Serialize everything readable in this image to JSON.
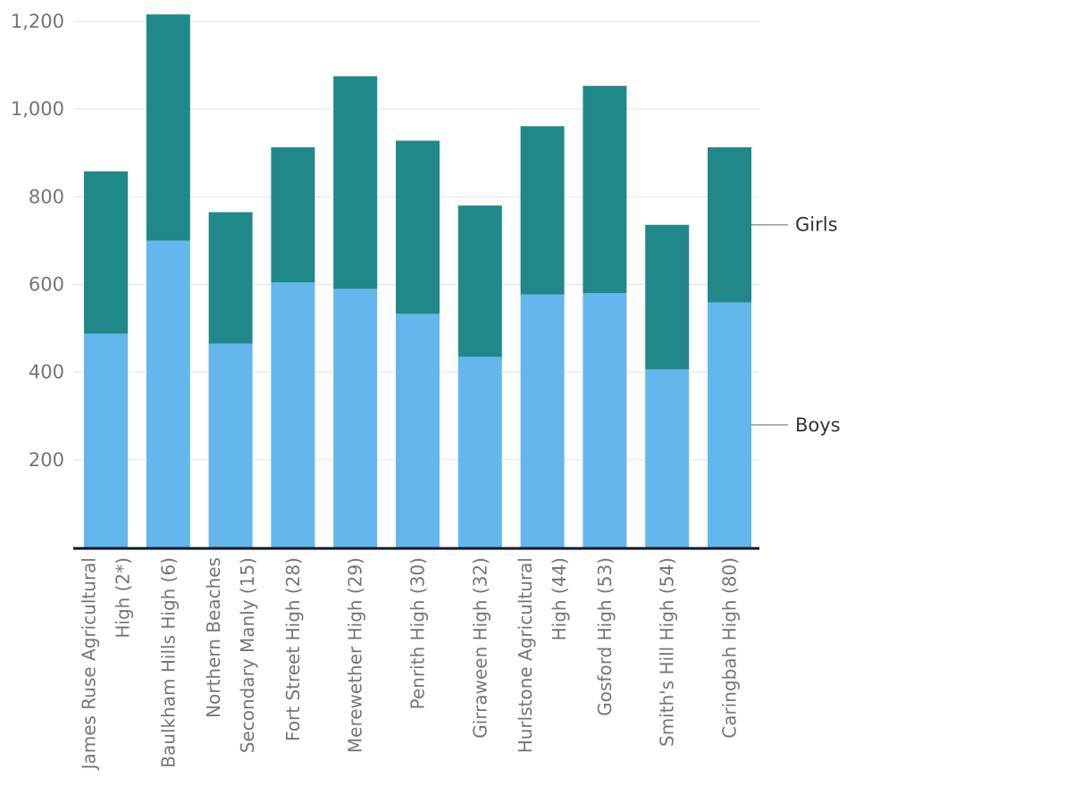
{
  "chart_data": {
    "type": "bar",
    "stacked": true,
    "title": "",
    "xlabel": "",
    "ylabel": "",
    "ylim": [
      0,
      1200
    ],
    "yticks": [
      200,
      400,
      600,
      800,
      1000,
      1200
    ],
    "ytick_labels": [
      "200",
      "400",
      "600",
      "800",
      "1,000",
      "1,200"
    ],
    "grid": true,
    "legend_position": "right",
    "categories": [
      "James Ruse Agricultural High (2*)",
      "Baulkham Hills High (6)",
      "Northern Beaches Secondary Manly (15)",
      "Fort Street High (28)",
      "Merewether High (29)",
      "Penrith High (30)",
      "Girraween High (32)",
      "Hurlstone Agricultural High (44)",
      "Gosford High (53)",
      "Smith's Hill High (54)",
      "Caringbah High (80)"
    ],
    "category_lines": [
      [
        "James Ruse Agricultural",
        "High (2*)"
      ],
      [
        "Baulkham Hills High (6)"
      ],
      [
        "Northern Beaches",
        "Secondary Manly (15)"
      ],
      [
        "Fort Street High (28)"
      ],
      [
        "Merewether High (29)"
      ],
      [
        "Penrith High (30)"
      ],
      [
        "Girraween High (32)"
      ],
      [
        "Hurlstone Agricultural",
        "High (44)"
      ],
      [
        "Gosford High (53)"
      ],
      [
        "Smith's Hill High (54)"
      ],
      [
        "Caringbah High (80)"
      ]
    ],
    "series": [
      {
        "name": "Boys",
        "color": "#63b7ec",
        "values": [
          488,
          700,
          465,
          605,
          590,
          533,
          435,
          577,
          580,
          406,
          559
        ]
      },
      {
        "name": "Girls",
        "color": "#21888a",
        "values": [
          370,
          516,
          300,
          308,
          485,
          395,
          345,
          384,
          473,
          330,
          354
        ]
      }
    ],
    "colors": {
      "axis": "#101828",
      "grid": "#e3e3e3",
      "leader": "#9a9a9a"
    }
  }
}
